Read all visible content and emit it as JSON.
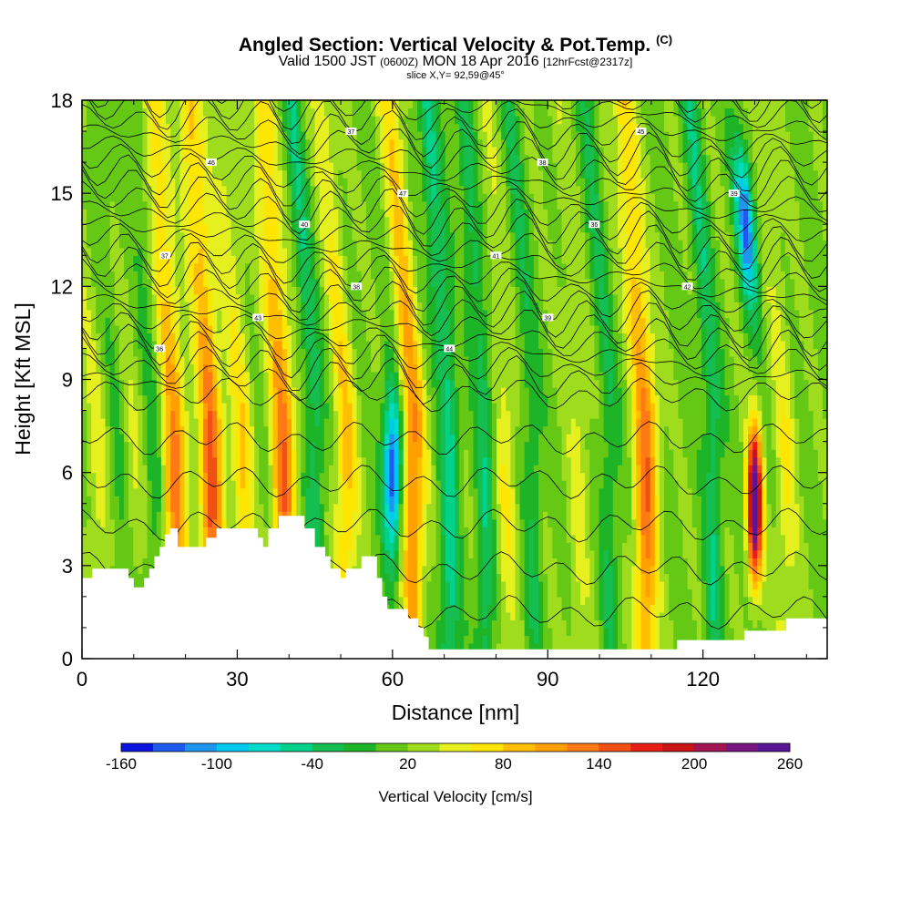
{
  "header": {
    "title": "Angled Section: Vertical Velocity & Pot.Temp.",
    "title_unit": "(C)",
    "valid_prefix": "Valid 1500 JST",
    "valid_utc": "(0600Z)",
    "valid_date": "MON 18 Apr 2016",
    "forecast": "[12hrFcst@2317z]",
    "slice": "slice X,Y= 92,59@45°"
  },
  "colorbar": {
    "title": "Vertical Velocity [cm/s]",
    "ticks": [
      "-160",
      "-100",
      "-40",
      "20",
      "80",
      "140",
      "200",
      "260"
    ],
    "colors": [
      "#0a14dc",
      "#1e5aee",
      "#1e96f0",
      "#00c8ee",
      "#00dcc8",
      "#00d28c",
      "#14be50",
      "#1eb428",
      "#64c814",
      "#a0dc1e",
      "#e6f01e",
      "#ffe600",
      "#ffbe00",
      "#ffa000",
      "#ff7a14",
      "#f05014",
      "#e61e14",
      "#c81414",
      "#a01450",
      "#781482",
      "#5a1496"
    ]
  },
  "chart_data": {
    "type": "heatmap",
    "title": "Angled Section: Vertical Velocity & Pot.Temp.",
    "xlabel": "Distance [nm]",
    "ylabel": "Height [Kft MSL]",
    "xlim": [
      0,
      144
    ],
    "ylim": [
      0,
      18
    ],
    "x_ticks": [
      "0",
      "30",
      "60",
      "90",
      "120"
    ],
    "y_ticks": [
      "0",
      "3",
      "6",
      "9",
      "12",
      "15",
      "18"
    ],
    "color_range": [
      -160,
      260
    ],
    "colorbar_label": "Vertical Velocity [cm/s]",
    "terrain_kft": [
      [
        0,
        2.6
      ],
      [
        2,
        2.9
      ],
      [
        8,
        2.9
      ],
      [
        9,
        2.6
      ],
      [
        10,
        2.3
      ],
      [
        12,
        2.6
      ],
      [
        13,
        2.9
      ],
      [
        14,
        3.3
      ],
      [
        15,
        3.6
      ],
      [
        16,
        4.0
      ],
      [
        17,
        4.2
      ],
      [
        18,
        4.2
      ],
      [
        18.5,
        3.6
      ],
      [
        20,
        3.6
      ],
      [
        23,
        3.6
      ],
      [
        24,
        3.9
      ],
      [
        26,
        4.2
      ],
      [
        29,
        4.2
      ],
      [
        32,
        4.2
      ],
      [
        34,
        3.9
      ],
      [
        35,
        3.6
      ],
      [
        36,
        4.2
      ],
      [
        38,
        4.6
      ],
      [
        42,
        4.6
      ],
      [
        43,
        4.2
      ],
      [
        45,
        3.6
      ],
      [
        47,
        3.3
      ],
      [
        48,
        2.9
      ],
      [
        50,
        2.6
      ],
      [
        51,
        2.9
      ],
      [
        53,
        2.9
      ],
      [
        54,
        3.3
      ],
      [
        56,
        3.3
      ],
      [
        57,
        2.6
      ],
      [
        58,
        2.0
      ],
      [
        59,
        1.6
      ],
      [
        62,
        1.6
      ],
      [
        63,
        1.3
      ],
      [
        65,
        1.0
      ],
      [
        66,
        0.7
      ],
      [
        67,
        0.3
      ],
      [
        92,
        0.3
      ],
      [
        100,
        0.3
      ],
      [
        114,
        0.3
      ],
      [
        115,
        0.6
      ],
      [
        125,
        0.6
      ],
      [
        128,
        0.9
      ],
      [
        129,
        0.9
      ],
      [
        134,
        0.9
      ],
      [
        136,
        1.3
      ],
      [
        144,
        1.3
      ]
    ],
    "updraft_bands": [
      {
        "x": 3,
        "peak": 30
      },
      {
        "x": 10,
        "peak": 20
      },
      {
        "x": 18,
        "peak": 110
      },
      {
        "x": 25,
        "peak": 130
      },
      {
        "x": 31,
        "peak": 60
      },
      {
        "x": 39,
        "peak": 120
      },
      {
        "x": 51,
        "peak": 70
      },
      {
        "x": 64,
        "peak": 110
      },
      {
        "x": 82,
        "peak": 40
      },
      {
        "x": 96,
        "peak": 30
      },
      {
        "x": 109,
        "peak": 120
      },
      {
        "x": 130,
        "peak": 260
      },
      {
        "x": 136,
        "peak": 40
      }
    ],
    "downdraft_bands": [
      {
        "x": 7,
        "peak": -20
      },
      {
        "x": 14,
        "peak": -30
      },
      {
        "x": 45,
        "peak": -60
      },
      {
        "x": 60,
        "peak": -160
      },
      {
        "x": 71,
        "peak": -80
      },
      {
        "x": 78,
        "peak": -60
      },
      {
        "x": 87,
        "peak": -40
      },
      {
        "x": 102,
        "peak": -40
      },
      {
        "x": 122,
        "peak": -60
      },
      {
        "x": 131,
        "peak": -140
      }
    ],
    "isentrope_labels": [
      "36",
      "37",
      "38",
      "39",
      "40",
      "41",
      "42",
      "43",
      "44",
      "45",
      "46",
      "47"
    ],
    "grid": false,
    "legend": "colorbar-bottom"
  }
}
